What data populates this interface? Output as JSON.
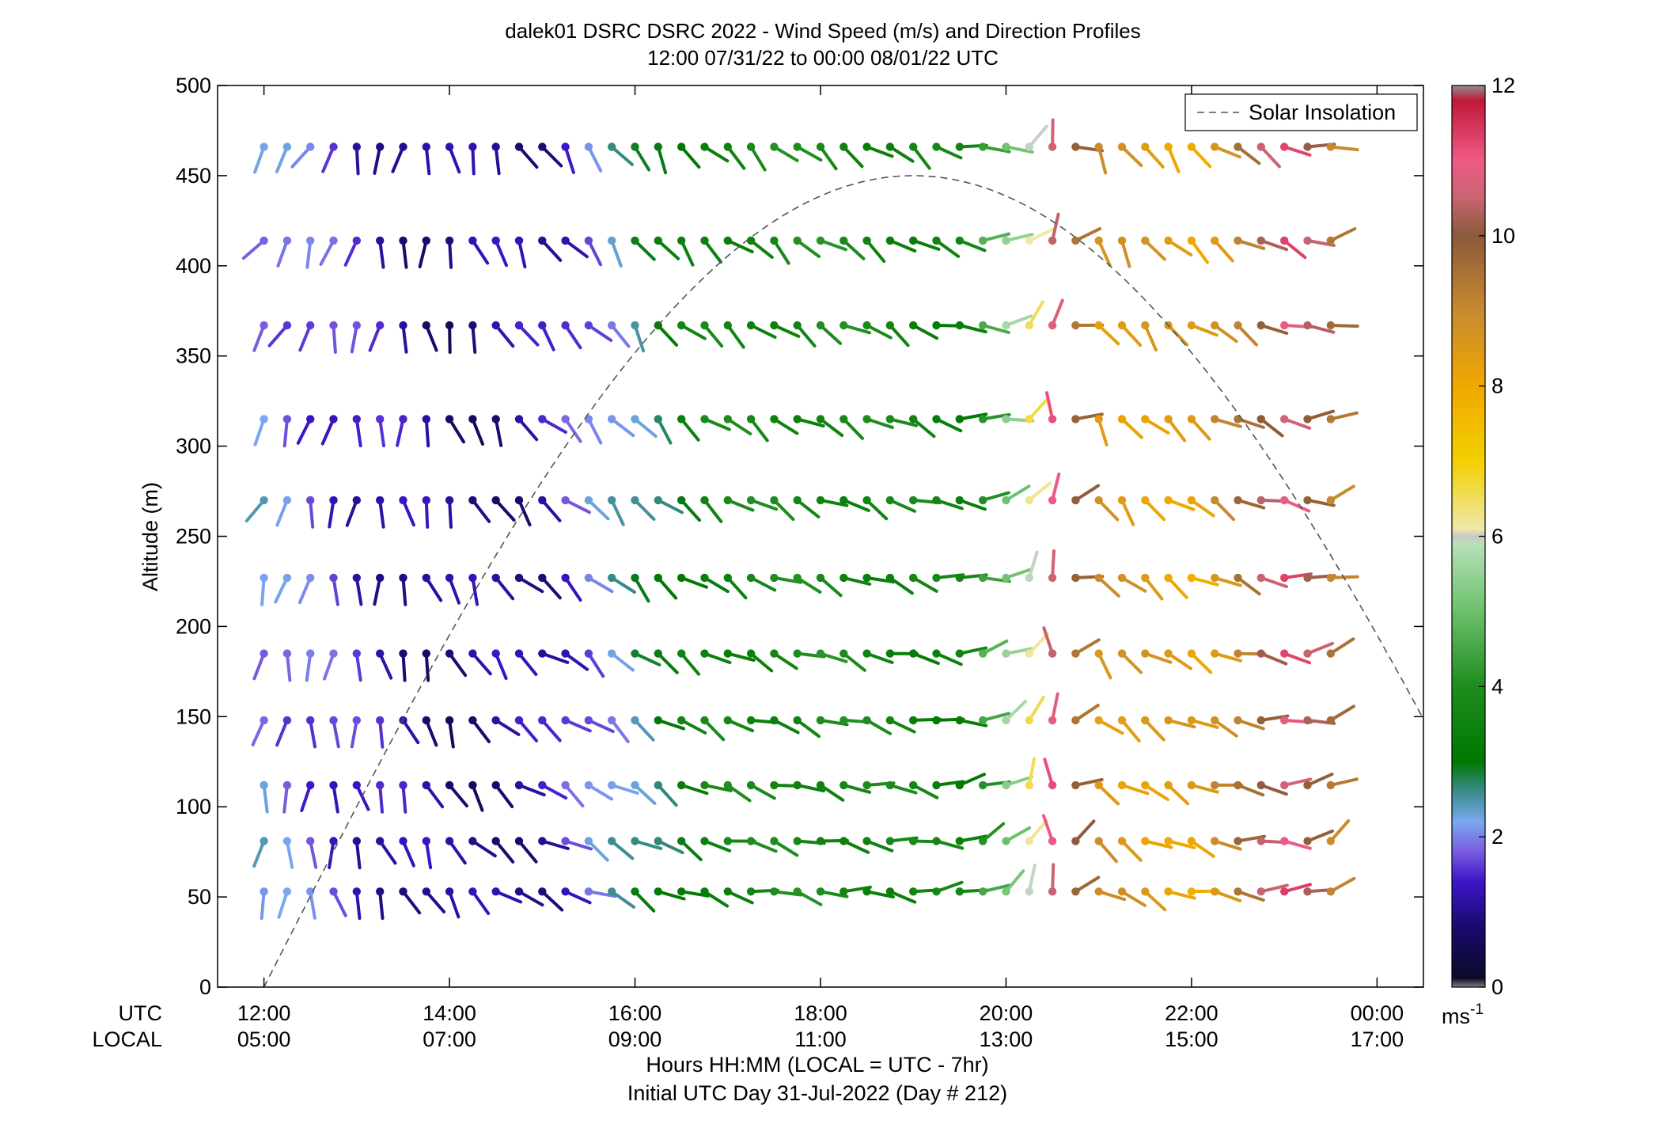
{
  "chart_data": {
    "type": "wind-barb profile",
    "title_line1": "dalek01 DSRC DSRC 2022 - Wind Speed (m/s) and Direction Profiles",
    "title_line2": "12:00 07/31/22 to 00:00 08/01/22  UTC",
    "ylabel": "Altitude (m)",
    "xlabel_line1": "Hours HH:MM  (LOCAL = UTC - 7hr)",
    "xlabel_line2": "Initial UTC Day 31-Jul-2022 (Day # 212)",
    "utc_row_label": "UTC",
    "local_row_label": "LOCAL",
    "ylim": [
      0,
      500
    ],
    "yticks": [
      0,
      50,
      100,
      150,
      200,
      250,
      300,
      350,
      400,
      450,
      500
    ],
    "xlim_hours": [
      11.5,
      24.5
    ],
    "xticks_hours": [
      12,
      14,
      16,
      18,
      20,
      22,
      24
    ],
    "utc_tick_labels": [
      "12:00",
      "14:00",
      "16:00",
      "18:00",
      "20:00",
      "22:00",
      "00:00"
    ],
    "local_tick_labels": [
      "05:00",
      "07:00",
      "09:00",
      "11:00",
      "13:00",
      "15:00",
      "17:00"
    ],
    "legend": {
      "entries": [
        "Solar Insolation"
      ],
      "placement": "top-right"
    },
    "solar_insolation": {
      "peak_hour": 19.0,
      "peak_altitude": 450,
      "half_width_hours": 7.0,
      "line_color": "#555555"
    },
    "colorbar": {
      "range": [
        0,
        12
      ],
      "ticks": [
        0,
        2,
        4,
        6,
        8,
        10,
        12
      ],
      "unit": "ms",
      "unit_exponent": "-1",
      "stops": [
        {
          "v": 0.0,
          "c": "#808080"
        },
        {
          "v": 0.12,
          "c": "#0a0a28"
        },
        {
          "v": 0.8,
          "c": "#1a0a6e"
        },
        {
          "v": 1.4,
          "c": "#3c14c8"
        },
        {
          "v": 1.8,
          "c": "#7a5ae0"
        },
        {
          "v": 2.2,
          "c": "#7aa8f0"
        },
        {
          "v": 2.6,
          "c": "#3a8c8c"
        },
        {
          "v": 3.0,
          "c": "#007800"
        },
        {
          "v": 4.0,
          "c": "#1e8c1e"
        },
        {
          "v": 5.0,
          "c": "#6cc06c"
        },
        {
          "v": 5.9,
          "c": "#b8e0b8"
        },
        {
          "v": 6.0,
          "c": "#c8c8c8"
        },
        {
          "v": 6.1,
          "c": "#f0e8a8"
        },
        {
          "v": 7.0,
          "c": "#f2d000"
        },
        {
          "v": 8.0,
          "c": "#f0a800"
        },
        {
          "v": 9.0,
          "c": "#c88a30"
        },
        {
          "v": 10.0,
          "c": "#8a5a3a"
        },
        {
          "v": 10.5,
          "c": "#c86470"
        },
        {
          "v": 11.0,
          "c": "#f05a86"
        },
        {
          "v": 11.8,
          "c": "#c01838"
        },
        {
          "v": 12.0,
          "c": "#909090"
        }
      ]
    },
    "times_hours": [
      12.0,
      12.25,
      12.5,
      12.75,
      13.0,
      13.25,
      13.5,
      13.75,
      14.0,
      14.25,
      14.5,
      14.75,
      15.0,
      15.25,
      15.5,
      15.75,
      16.0,
      16.25,
      16.5,
      16.75,
      17.0,
      17.25,
      17.5,
      17.75,
      18.0,
      18.25,
      18.5,
      18.75,
      19.0,
      19.25,
      19.5,
      19.75,
      20.0,
      20.25,
      20.5,
      20.75,
      21.0,
      21.25,
      21.5,
      21.75,
      22.0,
      22.25,
      22.5,
      22.75,
      23.0,
      23.25,
      23.5
    ],
    "altitudes_m": [
      53,
      81,
      112,
      148,
      185,
      227,
      270,
      315,
      367,
      414,
      466
    ],
    "speed_anchors": [
      {
        "t": 12.0,
        "s": 2.1
      },
      {
        "t": 13.0,
        "s": 1.4
      },
      {
        "t": 14.0,
        "s": 0.9
      },
      {
        "t": 15.0,
        "s": 1.2
      },
      {
        "t": 15.75,
        "s": 2.3
      },
      {
        "t": 16.75,
        "s": 3.6
      },
      {
        "t": 18.0,
        "s": 3.8
      },
      {
        "t": 19.5,
        "s": 3.4
      },
      {
        "t": 20.25,
        "s": 6.3
      },
      {
        "t": 20.5,
        "s": 10.8
      },
      {
        "t": 21.0,
        "s": 8.6
      },
      {
        "t": 22.0,
        "s": 8.2
      },
      {
        "t": 22.5,
        "s": 9.4
      },
      {
        "t": 23.0,
        "s": 11.0
      },
      {
        "t": 23.5,
        "s": 9.3
      }
    ],
    "dir_anchors": [
      {
        "t": 12.0,
        "d": 200
      },
      {
        "t": 13.0,
        "d": 180
      },
      {
        "t": 14.0,
        "d": 160
      },
      {
        "t": 15.0,
        "d": 130
      },
      {
        "t": 16.0,
        "d": 135
      },
      {
        "t": 17.0,
        "d": 120
      },
      {
        "t": 19.0,
        "d": 110
      },
      {
        "t": 20.0,
        "d": 70
      },
      {
        "t": 20.5,
        "d": 0
      },
      {
        "t": 21.0,
        "d": 140
      },
      {
        "t": 22.0,
        "d": 120
      },
      {
        "t": 23.0,
        "d": 100
      },
      {
        "t": 23.5,
        "d": 70
      }
    ]
  }
}
